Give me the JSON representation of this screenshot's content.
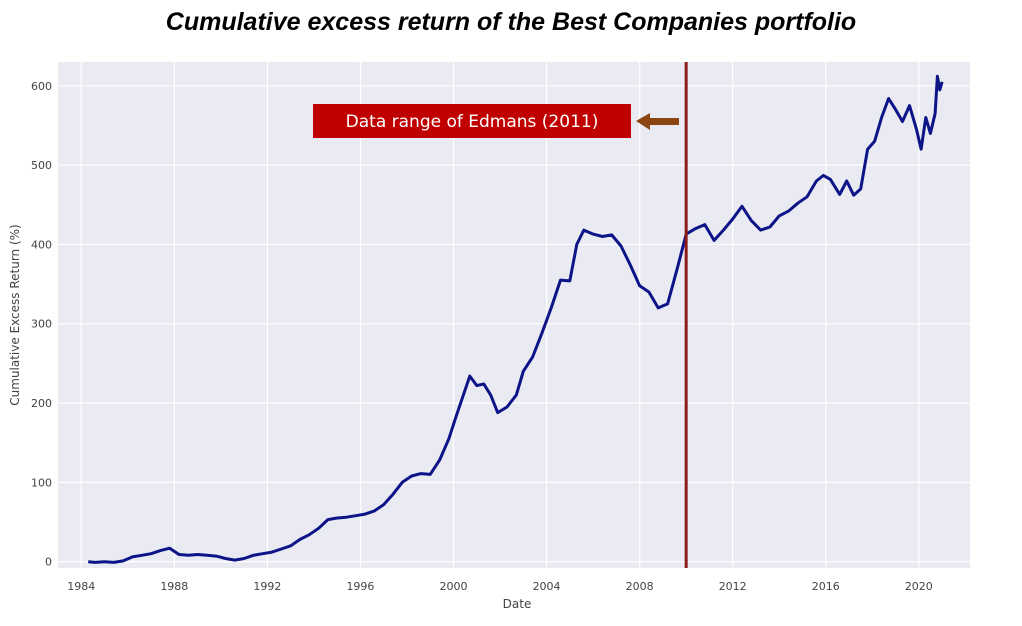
{
  "chart_data": {
    "type": "line",
    "title": "Cumulative excess return of the Best Companies portfolio",
    "xlabel": "Date",
    "ylabel": "Cumulative Excess Return (%)",
    "xlim": [
      1983.0,
      2022.2
    ],
    "ylim": [
      -8,
      630
    ],
    "x_ticks": [
      1984,
      1988,
      1992,
      1996,
      2000,
      2004,
      2008,
      2012,
      2016,
      2020
    ],
    "y_ticks": [
      0,
      100,
      200,
      300,
      400,
      500,
      600
    ],
    "grid": true,
    "colors": {
      "line": "#0d1488",
      "vline": "#8b1a1a",
      "annot_bg": "#c00000",
      "arrow": "#8b4513",
      "plot_bg": "#eaeaf2"
    },
    "annotation": {
      "text": "Data range of Edmans (2011)",
      "vline_x": 2010.0
    },
    "series": [
      {
        "x": [
          1984.3,
          1984.6,
          1985.0,
          1985.4,
          1985.8,
          1986.2,
          1986.6,
          1987.0,
          1987.4,
          1987.8,
          1988.2,
          1988.6,
          1989.0,
          1989.4,
          1989.8,
          1990.2,
          1990.6,
          1991.0,
          1991.4,
          1991.8,
          1992.2,
          1992.6,
          1993.0,
          1993.4,
          1993.8,
          1994.2,
          1994.6,
          1995.0,
          1995.4,
          1995.8,
          1996.2,
          1996.6,
          1997.0,
          1997.4,
          1997.8,
          1998.2,
          1998.6,
          1999.0,
          1999.4,
          1999.8,
          2000.1,
          2000.4,
          2000.7,
          2001.0,
          2001.3,
          2001.6,
          2001.9,
          2002.3,
          2002.7,
          2003.0,
          2003.4,
          2003.8,
          2004.2,
          2004.6,
          2005.0,
          2005.3,
          2005.6,
          2006.0,
          2006.4,
          2006.8,
          2007.2,
          2007.6,
          2008.0,
          2008.4,
          2008.8,
          2009.2,
          2009.6,
          2010.0,
          2010.4,
          2010.8,
          2011.2,
          2011.6,
          2012.0,
          2012.4,
          2012.8,
          2013.2,
          2013.6,
          2014.0,
          2014.4,
          2014.8,
          2015.2,
          2015.6,
          2015.9,
          2016.2,
          2016.6,
          2016.9,
          2017.2,
          2017.5,
          2017.8,
          2018.1,
          2018.4,
          2018.7,
          2019.0,
          2019.3,
          2019.6,
          2019.9,
          2020.1,
          2020.3,
          2020.5,
          2020.7,
          2020.8,
          2020.9,
          2021.0
        ],
        "y": [
          0,
          -1,
          0,
          -1,
          1,
          6,
          8,
          10,
          14,
          17,
          9,
          8,
          9,
          8,
          7,
          4,
          2,
          4,
          8,
          10,
          12,
          16,
          20,
          28,
          34,
          42,
          53,
          55,
          56,
          58,
          60,
          64,
          72,
          85,
          100,
          108,
          111,
          110,
          128,
          155,
          182,
          208,
          234,
          222,
          224,
          210,
          188,
          195,
          210,
          240,
          258,
          288,
          320,
          355,
          354,
          400,
          418,
          413,
          410,
          412,
          398,
          374,
          348,
          340,
          320,
          325,
          368,
          413,
          420,
          425,
          405,
          418,
          432,
          448,
          430,
          418,
          422,
          436,
          442,
          452,
          460,
          480,
          487,
          482,
          463,
          480,
          462,
          470,
          520,
          530,
          560,
          584,
          570,
          555,
          575,
          545,
          520,
          560,
          540,
          565,
          612,
          595,
          605
        ]
      }
    ]
  }
}
